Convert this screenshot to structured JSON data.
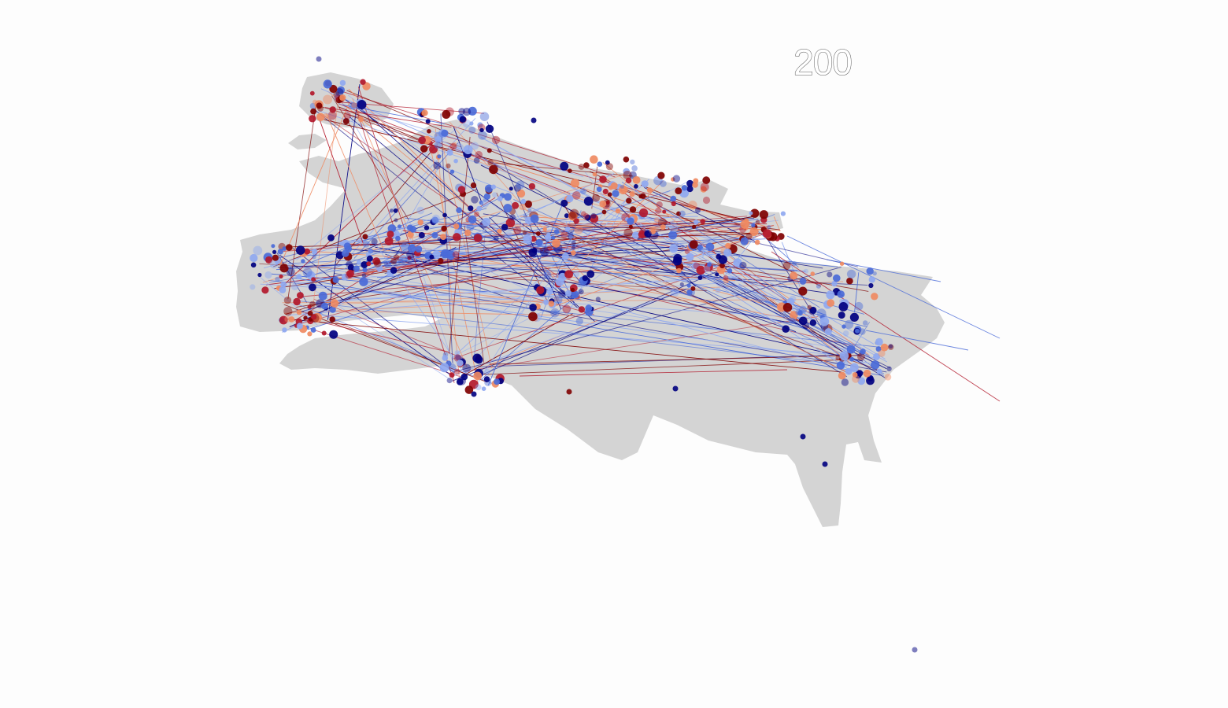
{
  "map": {
    "year_label": "200",
    "land_color": "#d4d4d4",
    "background_color": "#fdfdfd",
    "palette": {
      "red_dark": "#7f0000",
      "red": "#b2182b",
      "red_light": "#ef8a62",
      "blue_light": "#8fa8f0",
      "blue": "#4a6ad8",
      "blue_dark": "#000080"
    }
  }
}
